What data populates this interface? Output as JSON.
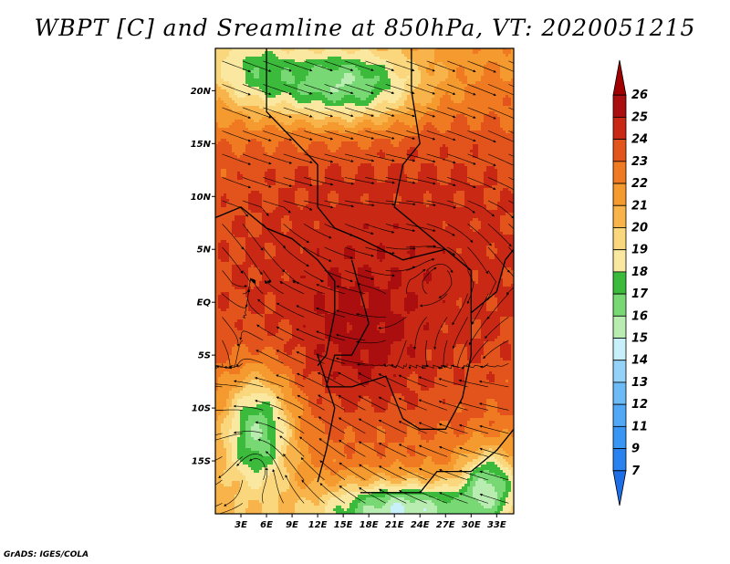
{
  "title": "WBPT [C] and Sreamline at 850hPa, VT: 2020051215",
  "credit": "GrADS: IGES/COLA",
  "map": {
    "lon_range": [
      0,
      35
    ],
    "lat_range": [
      -20,
      24
    ],
    "x_ticks": [
      "3E",
      "6E",
      "9E",
      "12E",
      "15E",
      "18E",
      "21E",
      "24E",
      "27E",
      "30E",
      "33E"
    ],
    "x_tick_values": [
      3,
      6,
      9,
      12,
      15,
      18,
      21,
      24,
      27,
      30,
      33
    ],
    "y_ticks": [
      "20N",
      "15N",
      "10N",
      "5N",
      "EQ",
      "5S",
      "10S",
      "15S"
    ],
    "y_tick_values": [
      20,
      15,
      10,
      5,
      0,
      -5,
      -10,
      -15
    ]
  },
  "colorbar": {
    "labels": [
      "7",
      "9",
      "11",
      "12",
      "13",
      "14",
      "15",
      "16",
      "17",
      "18",
      "19",
      "20",
      "21",
      "22",
      "23",
      "24",
      "25",
      "26"
    ],
    "colors": [
      "#1e6ee8",
      "#2a82f0",
      "#3a96f4",
      "#50a8f6",
      "#6cbaf6",
      "#94d2fa",
      "#c8f0fa",
      "#b8ecb0",
      "#78d874",
      "#3cba3c",
      "#fae8a0",
      "#fad77c",
      "#f8b44a",
      "#f59a2e",
      "#ef7a22",
      "#e2541c",
      "#c82814",
      "#aa0e0e",
      "#a00000"
    ]
  },
  "chart_data": {
    "type": "heatmap",
    "title": "WBPT [C] and Sreamline at 850hPa, VT: 2020051215",
    "variable": "WBPT [C]",
    "level": "850hPa",
    "valid_time": "2020051215",
    "x_range": [
      0,
      35
    ],
    "y_range": [
      -20,
      24
    ],
    "color_levels": [
      7,
      9,
      11,
      12,
      13,
      14,
      15,
      16,
      17,
      18,
      19,
      20,
      21,
      22,
      23,
      24,
      25,
      26
    ]
  }
}
